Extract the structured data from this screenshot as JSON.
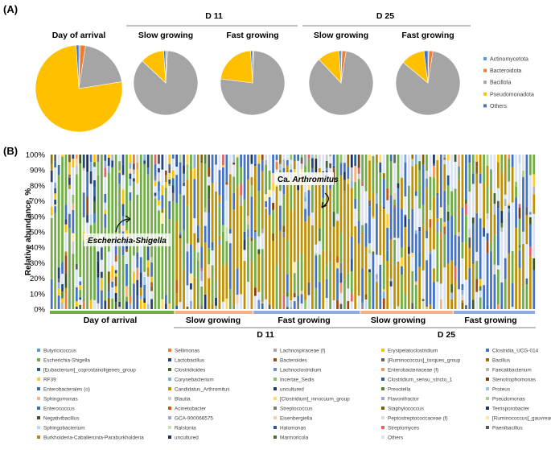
{
  "panel_a": {
    "label": "(A)",
    "group_labels": [
      "D 11",
      "D 25"
    ],
    "legend": [
      "Actinomycetota",
      "Bacteroidota",
      "Bacillota",
      "Pseudomonadota",
      "Others"
    ]
  },
  "panel_b": {
    "label": "(B)",
    "ylabel": "Relative abundance, %",
    "yticks": [
      "0%",
      "10%",
      "20%",
      "30%",
      "40%",
      "50%",
      "60%",
      "70%",
      "80%",
      "90%",
      "100%"
    ],
    "annotations": [
      "Escherichia-Shigella",
      "Ca. Arthromitus"
    ],
    "group_labels": [
      "Day of arrival",
      "Slow growing",
      "Fast growing",
      "Slow growing",
      "Fast growing"
    ],
    "day_labels": [
      "D 11",
      "D 25"
    ]
  },
  "colors": {
    "actinomycetota": "#5b9bd5",
    "bacteroidota": "#ed7d31",
    "bacillota": "#a5a5a5",
    "pseudomonadota": "#ffc000",
    "others": "#4472c4",
    "bar_dark_green": "#70ad47",
    "bar_navy": "#264478",
    "bar_gold": "#bf9000",
    "group_green": "#70ad47",
    "group_orange": "#f4b183",
    "group_blue": "#8faadc"
  },
  "chart_data": [
    {
      "type": "pie",
      "title": "Day of arrival",
      "labels": [
        "Actinomycetota",
        "Bacteroidota",
        "Bacillota",
        "Pseudomonadota",
        "Others"
      ],
      "values": [
        0.5,
        2,
        20,
        76.5,
        1
      ]
    },
    {
      "type": "pie",
      "title": "Slow growing (D 11)",
      "labels": [
        "Actinomycetota",
        "Bacteroidota",
        "Bacillota",
        "Pseudomonadota",
        "Others"
      ],
      "values": [
        0.3,
        0.7,
        86,
        12,
        1
      ]
    },
    {
      "type": "pie",
      "title": "Fast growing (D 11)",
      "labels": [
        "Actinomycetota",
        "Bacteroidota",
        "Bacillota",
        "Pseudomonadota",
        "Others"
      ],
      "values": [
        0.2,
        0.3,
        76.5,
        22,
        1
      ]
    },
    {
      "type": "pie",
      "title": "Slow growing (D 25)",
      "labels": [
        "Actinomycetota",
        "Bacteroidota",
        "Bacillota",
        "Pseudomonadota",
        "Others"
      ],
      "values": [
        0.5,
        2,
        85.5,
        11,
        1
      ]
    },
    {
      "type": "pie",
      "title": "Fast growing (D 25)",
      "labels": [
        "Actinomycetota",
        "Bacteroidota",
        "Bacillota",
        "Pseudomonadota",
        "Others"
      ],
      "values": [
        0.5,
        2,
        83.5,
        12,
        2
      ]
    },
    {
      "type": "bar",
      "stacked": true,
      "title": "",
      "ylabel": "Relative abundance, %",
      "ylim": [
        0,
        100
      ],
      "groups": [
        {
          "name": "Day of arrival",
          "day": "",
          "n_samples": 35,
          "composition": [
            [
              "Escherichia-Shigella",
              70
            ],
            [
              "Clostridia_UCG-014",
              10
            ],
            [
              "Lactobacillus",
              5
            ],
            [
              "Erysipelatoclostridium",
              5
            ],
            [
              "Others",
              10
            ]
          ]
        },
        {
          "name": "Slow growing",
          "day": "D 11",
          "n_samples": 22,
          "composition": [
            [
              "Candidatus_Arthromitus",
              45
            ],
            [
              "Escherichia-Shigella",
              25
            ],
            [
              "Clostridia_UCG-014",
              20
            ],
            [
              "Others",
              10
            ]
          ]
        },
        {
          "name": "Fast growing",
          "day": "D 11",
          "n_samples": 30,
          "composition": [
            [
              "Candidatus_Arthromitus",
              55
            ],
            [
              "Escherichia-Shigella",
              25
            ],
            [
              "Clostridia_UCG-014",
              12
            ],
            [
              "Others",
              8
            ]
          ]
        },
        {
          "name": "Slow growing",
          "day": "D 25",
          "n_samples": 26,
          "composition": [
            [
              "Candidatus_Arthromitus",
              30
            ],
            [
              "Clostridia_UCG-014",
              30
            ],
            [
              "Escherichia-Shigella",
              20
            ],
            [
              "Others",
              20
            ]
          ]
        },
        {
          "name": "Fast growing",
          "day": "D 25",
          "n_samples": 23,
          "composition": [
            [
              "Candidatus_Arthromitus",
              35
            ],
            [
              "Clostridia_UCG-014",
              30
            ],
            [
              "Escherichia-Shigella",
              15
            ],
            [
              "Others",
              20
            ]
          ]
        }
      ],
      "legend": [
        {
          "name": "Butyricicoccus",
          "color": "#5b9bd5"
        },
        {
          "name": "Sellimonas",
          "color": "#ed7d31"
        },
        {
          "name": "Lachnospiraceae (f)",
          "color": "#a5a5a5"
        },
        {
          "name": "Erysipelatoclostridium",
          "color": "#ffc000"
        },
        {
          "name": "Clostridia_UCG-014",
          "color": "#4472c4"
        },
        {
          "name": "Escherichia-Shigella",
          "color": "#70ad47"
        },
        {
          "name": "Lactobacillus",
          "color": "#264478"
        },
        {
          "name": "Bacteroides",
          "color": "#9e480e"
        },
        {
          "name": "[Ruminococcus]_torques_group",
          "color": "#636363"
        },
        {
          "name": "Bacillus",
          "color": "#997300"
        },
        {
          "name": "[Eubacterium]_coprostanoligenes_group",
          "color": "#255e91"
        },
        {
          "name": "Clostridioides",
          "color": "#43682b"
        },
        {
          "name": "Lachnoclostridium",
          "color": "#698ed0"
        },
        {
          "name": "Enterobacteriaceae (f)",
          "color": "#f1975a"
        },
        {
          "name": "Faecalibacterium",
          "color": "#b7b7b7"
        },
        {
          "name": "RF39",
          "color": "#ffcd33"
        },
        {
          "name": "Corynebacterium",
          "color": "#7cafdd"
        },
        {
          "name": "Incertae_Sedis",
          "color": "#8cc168"
        },
        {
          "name": "Clostridium_sensu_stricto_1",
          "color": "#335aa1"
        },
        {
          "name": "Stenotrophomonas",
          "color": "#843c0c"
        },
        {
          "name": "Enterobacterales (o)",
          "color": "#3b6e9c"
        },
        {
          "name": "Candidatus_Arthromitus",
          "color": "#bf9000"
        },
        {
          "name": "uncultured",
          "color": "#1f3864"
        },
        {
          "name": "Prevotella",
          "color": "#548235"
        },
        {
          "name": "Proteus",
          "color": "#9dc3e6"
        },
        {
          "name": "Sphingomonas",
          "color": "#f4b183"
        },
        {
          "name": "Blautia",
          "color": "#c9c9c9"
        },
        {
          "name": "[Clostridium]_innocuum_group",
          "color": "#ffd966"
        },
        {
          "name": "Flavonifractor",
          "color": "#8faadc"
        },
        {
          "name": "Pseudomonas",
          "color": "#a9d18e"
        },
        {
          "name": "Enterococcus",
          "color": "#2e75b6"
        },
        {
          "name": "Acinetobacter",
          "color": "#c55a11"
        },
        {
          "name": "Streptococcus",
          "color": "#7b7b7b"
        },
        {
          "name": "Staphylococcus",
          "color": "#7f6000"
        },
        {
          "name": "Terrisporobacter",
          "color": "#203864"
        },
        {
          "name": "Negativibacillus",
          "color": "#385723"
        },
        {
          "name": "GCA-900066575",
          "color": "#8ea9db"
        },
        {
          "name": "Eisenbergiella",
          "color": "#f8cbad"
        },
        {
          "name": "Peptostreptococcaceae (f)",
          "color": "#dbdbdb"
        },
        {
          "name": "[Ruminococcus]_gauvreauii_group",
          "color": "#ffe699"
        },
        {
          "name": "Sphingobacterium",
          "color": "#bdd7ee"
        },
        {
          "name": "Ralstonia",
          "color": "#c5e0b4"
        },
        {
          "name": "Halomonas",
          "color": "#2f5597"
        },
        {
          "name": "Streptomyces",
          "color": "#e06666"
        },
        {
          "name": "Paenibacillus",
          "color": "#595959"
        },
        {
          "name": "Burkholderia-Caballeronia-Paraburkholderia",
          "color": "#b8860b"
        },
        {
          "name": "uncultured",
          "color": "#1c2e5a"
        },
        {
          "name": "Marmoricola",
          "color": "#4a6b33"
        },
        {
          "name": "Others",
          "color": "#dae3f3"
        }
      ]
    }
  ]
}
